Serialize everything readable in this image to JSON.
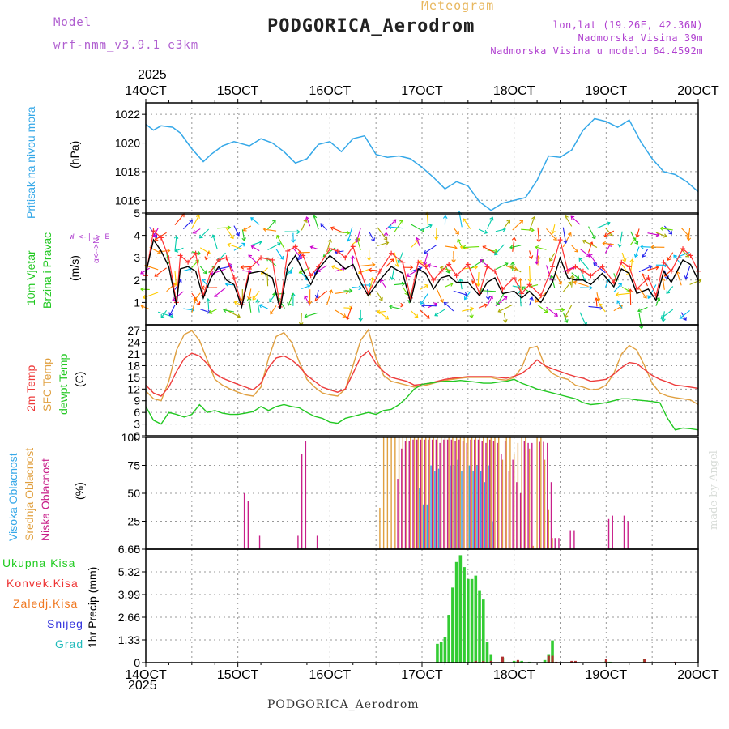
{
  "header": {
    "model_label": "Model",
    "model_name": "wrf-nmm_v3.9.1 e3km",
    "title": "PODGORICA_Aerodrom",
    "subtitle": "Meteogram",
    "coords": "lon,lat (19.26E, 42.36N)",
    "elevation": "Nadmorska Visina 39m",
    "model_elevation": "Nadmorska Visina u modelu 64.4592m"
  },
  "year_top": "2025",
  "year_bottom": "2025",
  "footer_station": "PODGORICA_Aerodrom",
  "made_by": "made by Angel",
  "colors": {
    "pressure": "#35a8e8",
    "wind_speed": "#000000",
    "gust": "#ff3030",
    "temp2m": "#ee3b3b",
    "sfc_temp": "#e0a040",
    "dewpt": "#22c822",
    "cloud_high": "#36a8e8",
    "cloud_mid": "#e0a040",
    "cloud_low": "#c8208a",
    "precip_total": "#33cc33",
    "precip_conv": "#ee3333",
    "precip_frozen": "#f08830",
    "snow": "#3333dd",
    "hail": "#33bbbb",
    "axis": "#000000"
  },
  "panel_labels": {
    "pressure": {
      "name": "Pritisak na nivou mora",
      "unit": "(hPa)"
    },
    "wind": {
      "name1": "10m Vjetar",
      "name2": "Brzina i Pravac",
      "unit": "(m/s)",
      "compass_ns": "α<-->N",
      "compass_ew": "W <-|-> E"
    },
    "temp": {
      "name1": "2m Temp",
      "name2": "SFC Temp",
      "name3": "dewpt Temp",
      "unit": "(C)"
    },
    "cloud": {
      "name1": "Visoka Oblacnost",
      "name2": "Srednja Oblacnost",
      "name3": "Niska Oblacnost",
      "unit": "(%)"
    },
    "precip": {
      "unit": "1hr Precip (mm)"
    }
  },
  "precip_legend": [
    {
      "label": "Ukupna Kisa",
      "color": "#22cc22"
    },
    {
      "label": "Konvek.Kisa",
      "color": "#ee3333"
    },
    {
      "label": "Zaledj.Kisa",
      "color": "#f07820"
    },
    {
      "label": "Snijeg",
      "color": "#3333dd"
    },
    {
      "label": "Grad",
      "color": "#22bbbb"
    }
  ],
  "chart_data": {
    "type": "meteogram",
    "x_range_hours": [
      0,
      144
    ],
    "x_ticks": [
      "14OCT",
      "15OCT",
      "16OCT",
      "17OCT",
      "18OCT",
      "19OCT",
      "20OCT"
    ],
    "pressure": {
      "ylim": [
        1015,
        1022.8
      ],
      "yticks": [
        1016,
        1018,
        1020,
        1022
      ],
      "x": [
        0,
        2,
        4,
        7,
        9,
        12,
        15,
        17,
        20,
        23,
        27,
        30,
        33,
        36,
        39,
        42,
        45,
        48,
        51,
        54,
        57,
        60,
        63,
        66,
        69,
        72,
        75,
        78,
        81,
        84,
        87,
        90,
        93,
        96,
        99,
        102,
        105,
        108,
        111,
        114,
        117,
        120,
        123,
        126,
        129,
        132,
        135,
        138,
        141,
        144
      ],
      "y": [
        1021.3,
        1020.9,
        1021.2,
        1021.1,
        1020.7,
        1019.6,
        1018.7,
        1019.2,
        1019.8,
        1020.1,
        1019.8,
        1020.3,
        1020.0,
        1019.4,
        1018.6,
        1018.9,
        1019.9,
        1020.1,
        1019.4,
        1020.3,
        1020.5,
        1019.2,
        1019.0,
        1019.1,
        1018.9,
        1018.3,
        1017.6,
        1016.8,
        1017.3,
        1017.0,
        1015.9,
        1015.3,
        1015.8,
        1016.0,
        1016.2,
        1017.4,
        1019.1,
        1019.0,
        1019.5,
        1020.9,
        1021.7,
        1021.5,
        1021.1,
        1021.6,
        1020.1,
        1018.9,
        1018.0,
        1017.8,
        1017.3,
        1016.6
      ]
    },
    "wind": {
      "ylim": [
        0,
        5
      ],
      "yticks": [
        1,
        2,
        3,
        4,
        5
      ],
      "x": [
        0,
        2,
        4,
        6,
        8,
        9,
        11,
        13,
        15,
        17,
        19,
        21,
        23,
        25,
        27,
        30,
        33,
        35,
        37,
        39,
        41,
        43,
        45,
        48,
        50,
        52,
        54,
        56,
        58,
        61,
        64,
        67,
        69,
        71,
        73,
        75,
        77,
        79,
        81,
        84,
        87,
        89,
        91,
        93,
        96,
        98,
        100,
        103,
        106,
        108,
        110,
        112,
        114,
        116,
        119,
        122,
        124,
        126,
        128,
        131,
        133,
        135,
        137,
        140,
        142,
        144
      ],
      "speed": [
        2.3,
        3.8,
        3.3,
        2.6,
        0.9,
        2.5,
        2.6,
        2.4,
        1.2,
        2.1,
        2.6,
        2.0,
        1.8,
        0.8,
        2.3,
        2.4,
        2.1,
        0.7,
        2.6,
        3.1,
        2.4,
        1.8,
        2.5,
        3.1,
        2.8,
        2.5,
        2.7,
        1.9,
        1.3,
        2.0,
        2.6,
        2.3,
        1.0,
        2.5,
        2.3,
        1.6,
        2.1,
        2.2,
        1.9,
        1.9,
        1.3,
        1.9,
        2.1,
        1.4,
        1.5,
        1.2,
        1.5,
        1.0,
        1.9,
        3.0,
        2.1,
        2.0,
        2.0,
        1.8,
        2.3,
        1.7,
        2.5,
        2.3,
        1.4,
        1.6,
        1.1,
        2.4,
        1.9,
        2.9,
        2.7,
        2.0
      ],
      "gust": [
        2.2,
        4.2,
        3.9,
        3.0,
        1.0,
        3.1,
        2.8,
        3.2,
        1.3,
        2.4,
        2.9,
        3.0,
        2.1,
        0.9,
        2.5,
        3.0,
        2.9,
        0.8,
        3.3,
        3.5,
        3.1,
        2.2,
        2.6,
        3.4,
        3.3,
        3.0,
        3.5,
        2.4,
        1.4,
        2.4,
        3.2,
        2.8,
        1.2,
        2.8,
        2.6,
        2.0,
        2.4,
        2.7,
        2.2,
        2.7,
        1.4,
        2.6,
        2.4,
        1.6,
        2.1,
        1.4,
        1.8,
        1.3,
        2.6,
        3.8,
        2.4,
        2.6,
        2.4,
        2.2,
        2.6,
        1.9,
        2.8,
        2.6,
        1.6,
        2.1,
        1.3,
        2.8,
        2.4,
        3.4,
        3.1,
        2.4
      ],
      "direction_note": "arrow field"
    },
    "temperature": {
      "ylim": [
        0,
        28.5
      ],
      "yticks": [
        0,
        3,
        6,
        9,
        12,
        15,
        18,
        21,
        24,
        27
      ],
      "x": [
        0,
        2,
        4,
        6,
        8,
        10,
        12,
        14,
        16,
        18,
        20,
        22,
        24,
        26,
        28,
        30,
        32,
        34,
        36,
        38,
        40,
        42,
        44,
        46,
        48,
        50,
        52,
        54,
        56,
        58,
        60,
        62,
        64,
        66,
        68,
        70,
        72,
        74,
        76,
        78,
        80,
        82,
        84,
        86,
        88,
        90,
        92,
        94,
        96,
        98,
        100,
        102,
        104,
        106,
        108,
        110,
        112,
        114,
        116,
        118,
        120,
        122,
        124,
        126,
        128,
        130,
        132,
        134,
        136,
        138,
        140,
        142,
        144
      ],
      "t2m": [
        13.0,
        11.0,
        10.2,
        12.5,
        16.5,
        19.8,
        21.2,
        20.5,
        18.5,
        16.0,
        14.8,
        14.0,
        13.2,
        12.5,
        11.8,
        13.5,
        17.5,
        20.0,
        20.5,
        19.5,
        17.8,
        15.5,
        14.0,
        12.5,
        11.8,
        11.2,
        12.0,
        16.0,
        20.2,
        21.8,
        18.5,
        16.5,
        15.0,
        14.5,
        14.0,
        13.0,
        13.2,
        13.5,
        14.0,
        14.5,
        14.8,
        15.0,
        15.2,
        15.2,
        15.2,
        15.2,
        15.0,
        14.8,
        15.3,
        16.0,
        17.5,
        19.5,
        18.0,
        17.2,
        16.5,
        15.8,
        15.2,
        14.8,
        14.0,
        14.2,
        14.5,
        15.8,
        17.5,
        18.8,
        18.5,
        17.0,
        15.5,
        14.5,
        13.8,
        13.0,
        12.8,
        12.5,
        12.2
      ],
      "sfc": [
        11.5,
        9.5,
        9.0,
        14.0,
        22.0,
        26.0,
        27.0,
        24.5,
        19.5,
        14.5,
        13.0,
        12.0,
        11.2,
        10.5,
        10.2,
        12.5,
        20.0,
        25.5,
        26.5,
        24.0,
        19.0,
        14.5,
        12.5,
        11.0,
        10.5,
        10.2,
        12.0,
        18.0,
        24.5,
        27.2,
        20.0,
        15.5,
        14.0,
        13.5,
        13.0,
        12.5,
        12.8,
        13.2,
        13.8,
        14.2,
        14.5,
        14.8,
        15.0,
        15.0,
        15.0,
        15.0,
        14.5,
        14.3,
        15.0,
        17.5,
        22.5,
        23.0,
        18.0,
        16.0,
        15.0,
        14.5,
        13.0,
        12.5,
        11.8,
        12.0,
        13.0,
        16.0,
        21.0,
        23.2,
        22.0,
        18.0,
        13.5,
        11.0,
        10.2,
        9.8,
        9.5,
        9.2,
        8.0
      ],
      "dewpt": [
        7.5,
        4.0,
        3.0,
        6.0,
        5.5,
        4.8,
        5.5,
        8.0,
        6.0,
        6.5,
        5.8,
        5.5,
        5.5,
        5.8,
        6.2,
        7.5,
        6.5,
        7.5,
        8.0,
        7.5,
        7.2,
        6.0,
        5.0,
        4.5,
        3.5,
        3.2,
        4.5,
        5.0,
        5.5,
        6.0,
        5.5,
        6.5,
        6.8,
        8.0,
        9.8,
        12.0,
        13.2,
        13.5,
        13.8,
        14.0,
        14.0,
        14.2,
        14.0,
        13.8,
        13.5,
        13.5,
        13.8,
        14.0,
        14.5,
        13.5,
        12.8,
        12.0,
        11.5,
        11.0,
        10.5,
        10.0,
        9.5,
        8.5,
        8.0,
        8.2,
        8.5,
        9.0,
        9.5,
        9.5,
        9.2,
        9.0,
        8.8,
        8.5,
        4.5,
        1.5,
        2.0,
        1.8,
        1.5
      ]
    },
    "clouds": {
      "ylim": [
        0,
        100
      ],
      "yticks": [
        0,
        25,
        50,
        75,
        100
      ],
      "high": [
        [
          71,
          55
        ],
        [
          72,
          40
        ],
        [
          73,
          40
        ],
        [
          74,
          75
        ],
        [
          75,
          70
        ],
        [
          76,
          72
        ],
        [
          79,
          75
        ],
        [
          80,
          75
        ],
        [
          81,
          80
        ],
        [
          82,
          70
        ],
        [
          84,
          75
        ],
        [
          85,
          70
        ],
        [
          86,
          75
        ],
        [
          87,
          70
        ],
        [
          88,
          60
        ],
        [
          89,
          75
        ],
        [
          90,
          25
        ]
      ],
      "mid": [
        [
          61,
          37
        ],
        [
          62,
          100
        ],
        [
          63,
          100
        ],
        [
          64,
          100
        ],
        [
          65,
          100
        ],
        [
          66,
          100
        ],
        [
          67,
          100
        ],
        [
          68,
          100
        ],
        [
          69,
          100
        ],
        [
          70,
          100
        ],
        [
          71,
          100
        ],
        [
          72,
          100
        ],
        [
          73,
          100
        ],
        [
          74,
          100
        ],
        [
          75,
          100
        ],
        [
          76,
          100
        ],
        [
          77,
          100
        ],
        [
          78,
          100
        ],
        [
          79,
          100
        ],
        [
          80,
          100
        ],
        [
          81,
          100
        ],
        [
          82,
          100
        ],
        [
          83,
          100
        ],
        [
          84,
          100
        ],
        [
          85,
          100
        ],
        [
          86,
          100
        ],
        [
          87,
          100
        ],
        [
          88,
          100
        ],
        [
          89,
          100
        ],
        [
          90,
          100
        ],
        [
          91,
          100
        ],
        [
          92,
          100
        ],
        [
          93,
          80
        ],
        [
          94,
          100
        ],
        [
          95,
          100
        ],
        [
          96,
          85
        ],
        [
          97,
          95
        ],
        [
          98,
          100
        ],
        [
          99,
          100
        ],
        [
          100,
          90
        ],
        [
          101,
          3
        ],
        [
          102,
          100
        ],
        [
          103,
          100
        ],
        [
          104,
          80
        ],
        [
          105,
          35
        ],
        [
          106,
          10
        ]
      ],
      "low": [
        [
          25,
          50
        ],
        [
          26,
          43
        ],
        [
          29,
          12
        ],
        [
          39,
          12
        ],
        [
          40,
          85
        ],
        [
          41,
          97
        ],
        [
          44,
          12
        ],
        [
          65,
          63
        ],
        [
          66,
          90
        ],
        [
          67,
          97
        ],
        [
          68,
          97
        ],
        [
          69,
          98
        ],
        [
          70,
          98
        ],
        [
          71,
          98
        ],
        [
          72,
          98
        ],
        [
          73,
          98
        ],
        [
          74,
          98
        ],
        [
          75,
          98
        ],
        [
          76,
          95
        ],
        [
          77,
          98
        ],
        [
          78,
          98
        ],
        [
          79,
          98
        ],
        [
          80,
          97
        ],
        [
          81,
          98
        ],
        [
          82,
          97
        ],
        [
          83,
          95
        ],
        [
          84,
          98
        ],
        [
          85,
          98
        ],
        [
          86,
          98
        ],
        [
          87,
          97
        ],
        [
          88,
          95
        ],
        [
          89,
          98
        ],
        [
          90,
          97
        ],
        [
          91,
          95
        ],
        [
          92,
          85
        ],
        [
          93,
          97
        ],
        [
          94,
          70
        ],
        [
          95,
          80
        ],
        [
          96,
          60
        ],
        [
          97,
          50
        ],
        [
          98,
          97
        ],
        [
          99,
          95
        ],
        [
          100,
          95
        ],
        [
          102,
          96
        ],
        [
          103,
          96
        ],
        [
          104,
          95
        ],
        [
          105,
          60
        ],
        [
          106,
          10
        ],
        [
          107,
          10
        ],
        [
          110,
          17
        ],
        [
          111,
          17
        ],
        [
          120,
          27
        ],
        [
          121,
          30
        ],
        [
          124,
          30
        ],
        [
          125,
          25
        ]
      ]
    },
    "precip": {
      "ylim": [
        0,
        6.65
      ],
      "yticks": [
        0,
        1.33,
        2.66,
        3.99,
        5.32,
        6.65
      ],
      "total": [
        [
          76,
          1.1
        ],
        [
          77,
          1.2
        ],
        [
          78,
          1.5
        ],
        [
          79,
          2.8
        ],
        [
          80,
          4.4
        ],
        [
          81,
          5.9
        ],
        [
          82,
          6.3
        ],
        [
          83,
          5.6
        ],
        [
          84,
          4.9
        ],
        [
          85,
          4.9
        ],
        [
          86,
          5.1
        ],
        [
          87,
          4.2
        ],
        [
          88,
          3.7
        ],
        [
          89,
          1.2
        ],
        [
          90,
          0.45
        ],
        [
          93,
          0.3
        ],
        [
          96,
          0.1
        ],
        [
          97,
          0.1
        ],
        [
          98,
          0.1
        ],
        [
          100,
          0.05
        ],
        [
          104,
          0.15
        ],
        [
          105,
          0.45
        ],
        [
          106,
          1.3
        ],
        [
          111,
          0.05
        ],
        [
          120,
          0.1
        ],
        [
          121,
          0.05
        ],
        [
          130,
          0.2
        ]
      ],
      "convective": [
        [
          86,
          0.1
        ],
        [
          88,
          0.1
        ],
        [
          90,
          0.1
        ],
        [
          93,
          0.35
        ],
        [
          97,
          0.15
        ],
        [
          105,
          0.4
        ],
        [
          106,
          0.4
        ],
        [
          107,
          0.05
        ],
        [
          111,
          0.1
        ],
        [
          112,
          0.1
        ],
        [
          120,
          0.2
        ],
        [
          130,
          0.2
        ],
        [
          138,
          0.05
        ]
      ]
    }
  }
}
